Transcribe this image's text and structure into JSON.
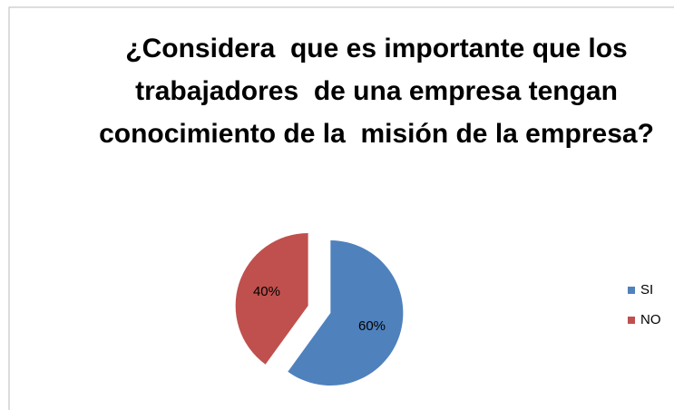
{
  "chart_data": {
    "type": "pie",
    "title": "¿Considera  que es importante que los trabajadores  de una empresa tengan conocimiento de la  misión de la empresa?",
    "categories": [
      "SI",
      "NO"
    ],
    "values": [
      60,
      40
    ],
    "value_labels": [
      "60%",
      "40%"
    ],
    "colors": [
      "#4f81bd",
      "#c0504d"
    ],
    "legend": "right"
  }
}
